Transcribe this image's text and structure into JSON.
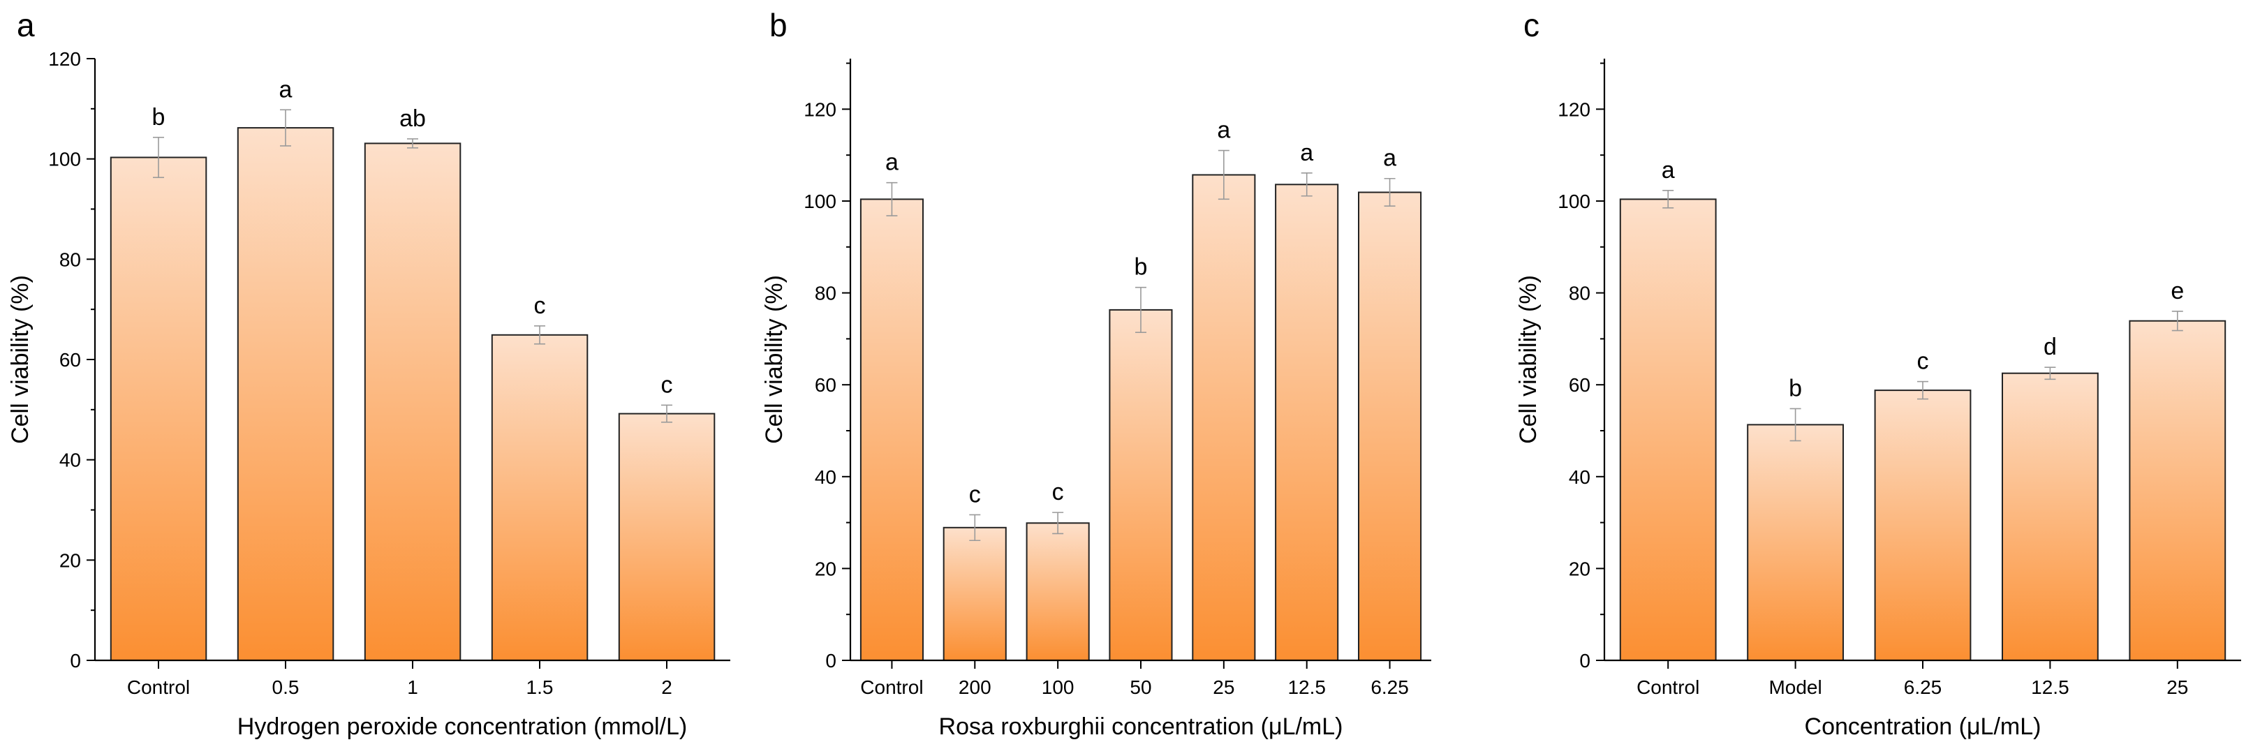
{
  "chart_data": [
    {
      "type": "bar",
      "panel_label": "a",
      "xlabel": "Hydrogen peroxide concentration (mmol/L)",
      "ylabel": "Cell viability (%)",
      "ylim": [
        0,
        120
      ],
      "ytick_step": 20,
      "ytick_labels": [
        "0",
        "20",
        "40",
        "60",
        "80",
        "100",
        "120"
      ],
      "categories": [
        "Control",
        "0.5",
        "1",
        "1.5",
        "2"
      ],
      "values": [
        100.3,
        106.2,
        103.1,
        64.9,
        49.2
      ],
      "errors": [
        4.0,
        3.6,
        0.9,
        1.8,
        1.7
      ],
      "significance": [
        "b",
        "a",
        "ab",
        "c",
        "c"
      ],
      "colors": {
        "bar_top": "#fde0cb",
        "bar_bottom": "#fb8f32",
        "bar_stroke": "#222222",
        "error_bar": "#9a9a9a"
      }
    },
    {
      "type": "bar",
      "panel_label": "b",
      "xlabel": "Rosa roxburghii concentration (μL/mL)",
      "ylabel": "Cell viability (%)",
      "ylim": [
        0,
        131
      ],
      "ytick_step": 20,
      "ytick_labels": [
        "0",
        "20",
        "40",
        "60",
        "80",
        "100",
        "120"
      ],
      "categories": [
        "Control",
        "200",
        "100",
        "50",
        "25",
        "12.5",
        "6.25"
      ],
      "values": [
        100.4,
        28.9,
        29.9,
        76.3,
        105.7,
        103.6,
        101.9
      ],
      "errors": [
        3.6,
        2.8,
        2.3,
        4.9,
        5.3,
        2.5,
        3.0
      ],
      "significance": [
        "a",
        "c",
        "c",
        "b",
        "a",
        "a",
        "a"
      ],
      "colors": {
        "bar_top": "#fde0cb",
        "bar_bottom": "#fb8f32",
        "bar_stroke": "#222222",
        "error_bar": "#9a9a9a"
      }
    },
    {
      "type": "bar",
      "panel_label": "c",
      "xlabel": "Concentration (μL/mL)",
      "ylabel": "Cell viability (%)",
      "ylim": [
        0,
        131
      ],
      "ytick_step": 20,
      "ytick_labels": [
        "0",
        "20",
        "40",
        "60",
        "80",
        "100",
        "120"
      ],
      "categories": [
        "Control",
        "Model",
        "6.25",
        "12.5",
        "25"
      ],
      "values": [
        100.4,
        51.3,
        58.8,
        62.5,
        73.9
      ],
      "errors": [
        1.9,
        3.5,
        1.9,
        1.3,
        2.1
      ],
      "significance": [
        "a",
        "b",
        "c",
        "d",
        "e"
      ],
      "colors": {
        "bar_top": "#fde0cb",
        "bar_bottom": "#fb8f32",
        "bar_stroke": "#222222",
        "error_bar": "#9a9a9a"
      }
    }
  ]
}
